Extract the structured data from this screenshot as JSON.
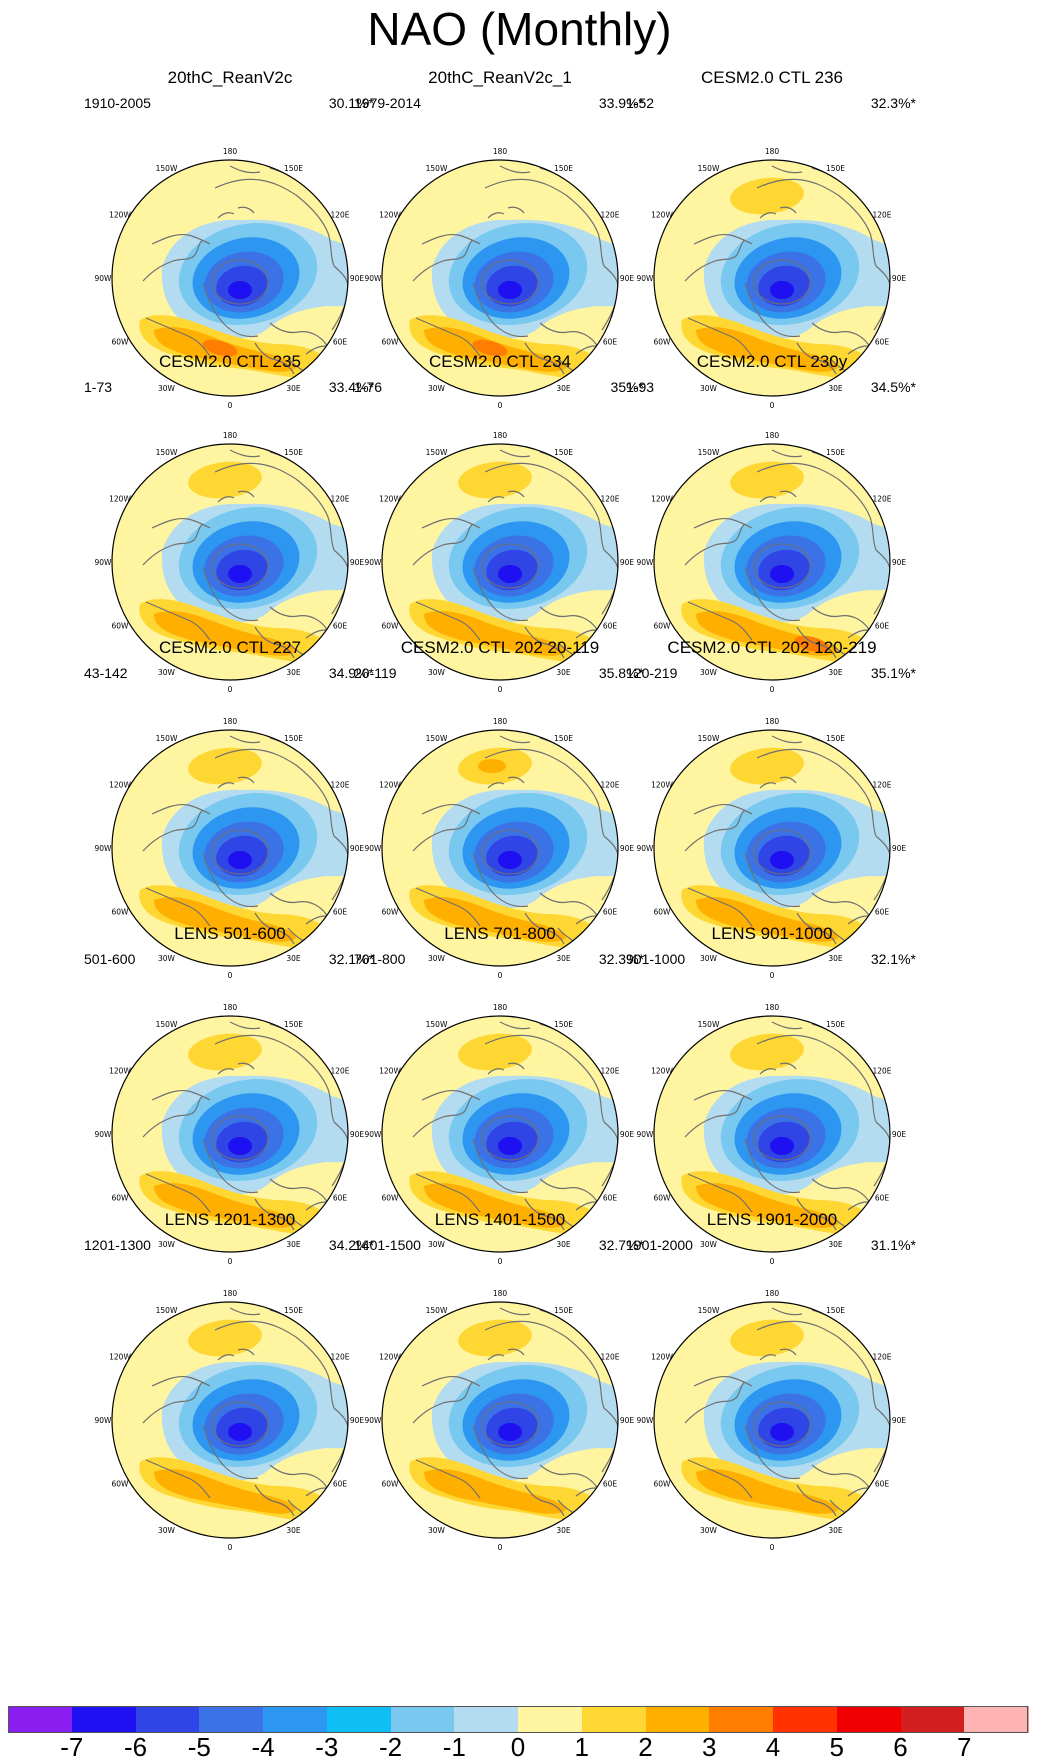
{
  "title": "NAO (Monthly)",
  "lon_labels": [
    "180",
    "150E",
    "120E",
    "90E",
    "60E",
    "30E",
    "0",
    "30W",
    "60W",
    "90W",
    "120W",
    "150W"
  ],
  "panels": [
    {
      "title": "20thC_ReanV2c",
      "period": "1910-2005",
      "variance": "30.1%*"
    },
    {
      "title": "20thC_ReanV2c_1",
      "period": "1979-2014",
      "variance": "33.9%*"
    },
    {
      "title": "CESM2.0 CTL 236",
      "period": "1-52",
      "variance": "32.3%*"
    },
    {
      "title": "CESM2.0 CTL 235",
      "period": "1-73",
      "variance": "33.4%*"
    },
    {
      "title": "CESM2.0 CTL 234",
      "period": "1-76",
      "variance": "35%*"
    },
    {
      "title": "CESM2.0 CTL 230y",
      "period": "1-93",
      "variance": "34.5%*"
    },
    {
      "title": "CESM2.0 CTL 227",
      "period": "43-142",
      "variance": "34.9%*"
    },
    {
      "title": "CESM2.0 CTL 202 20-119",
      "period": "20-119",
      "variance": "35.8%*"
    },
    {
      "title": "CESM2.0 CTL 202 120-219",
      "period": "120-219",
      "variance": "35.1%*"
    },
    {
      "title": "LENS 501-600",
      "period": "501-600",
      "variance": "32.1%*"
    },
    {
      "title": "LENS 701-800",
      "period": "701-800",
      "variance": "32.3%*"
    },
    {
      "title": "LENS 901-1000",
      "period": "901-1000",
      "variance": "32.1%*"
    },
    {
      "title": "LENS 1201-1300",
      "period": "1201-1300",
      "variance": "34.2%*"
    },
    {
      "title": "LENS 1401-1500",
      "period": "1401-1500",
      "variance": "32.7%*"
    },
    {
      "title": "LENS 1901-2000",
      "period": "1901-2000",
      "variance": "31.1%*"
    }
  ],
  "colorbar": {
    "colors": [
      "#8a1ef0",
      "#1e10f0",
      "#2f45e6",
      "#3b72e6",
      "#2d96f0",
      "#0fbef5",
      "#78c8f0",
      "#b4dcf0",
      "#fff5a0",
      "#ffd732",
      "#ffaf00",
      "#ff7d00",
      "#ff3200",
      "#f00000",
      "#d21e1e",
      "#ffb4b4"
    ],
    "ticks": [
      "-7",
      "-6",
      "-5",
      "-4",
      "-3",
      "-2",
      "-1",
      "0",
      "1",
      "2",
      "3",
      "4",
      "5",
      "6",
      "7"
    ]
  }
}
